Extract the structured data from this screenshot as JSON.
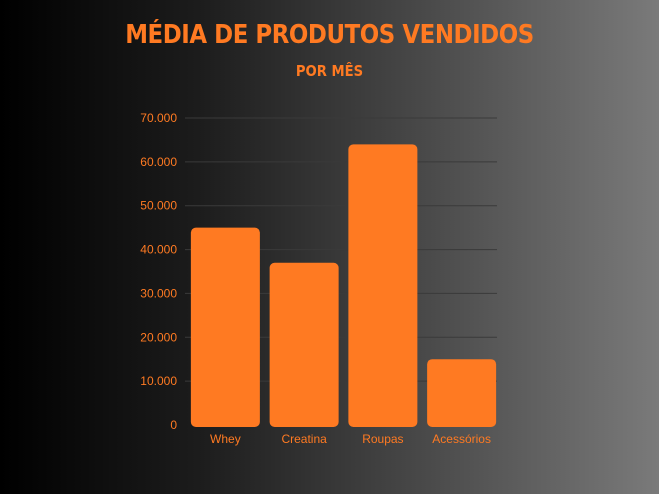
{
  "chart_data": {
    "type": "bar",
    "title": "MÉDIA DE PRODUTOS VENDIDOS",
    "subtitle": "POR MÊS",
    "categories": [
      "Whey",
      "Creatina",
      "Roupas",
      "Acessórios"
    ],
    "values": [
      45000,
      37000,
      64000,
      15000
    ],
    "yticks": [
      "0",
      "10.000",
      "20.000",
      "30.000",
      "40.000",
      "50.000",
      "60.000",
      "70.000"
    ],
    "ylim": [
      0,
      70000
    ],
    "grid": true,
    "bar_color": "#ff7a22"
  }
}
